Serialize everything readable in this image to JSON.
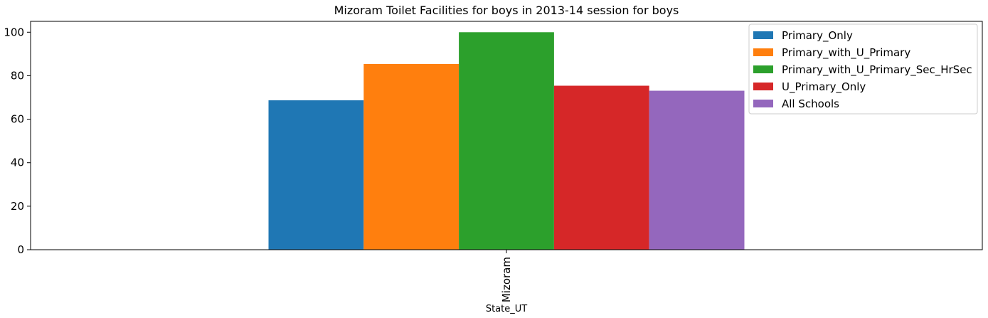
{
  "chart_data": {
    "type": "bar",
    "title": "Mizoram Toilet Facilities for boys in 2013-14 session for boys",
    "xlabel": "State_UT",
    "ylabel": "",
    "categories": [
      "Mizoram"
    ],
    "ylim": [
      0,
      105
    ],
    "yticks": [
      0,
      20,
      40,
      60,
      80,
      100
    ],
    "grid": false,
    "legend_position": "top-right",
    "series": [
      {
        "name": "Primary_Only",
        "values": [
          68.7
        ],
        "color": "#1f77b4"
      },
      {
        "name": "Primary_with_U_Primary",
        "values": [
          85.4
        ],
        "color": "#ff7f0e"
      },
      {
        "name": "Primary_with_U_Primary_Sec_HrSec",
        "values": [
          100
        ],
        "color": "#2ca02c"
      },
      {
        "name": "U_Primary_Only",
        "values": [
          75.4
        ],
        "color": "#d62728"
      },
      {
        "name": "All Schools",
        "values": [
          73.1
        ],
        "color": "#9467bd"
      }
    ]
  }
}
